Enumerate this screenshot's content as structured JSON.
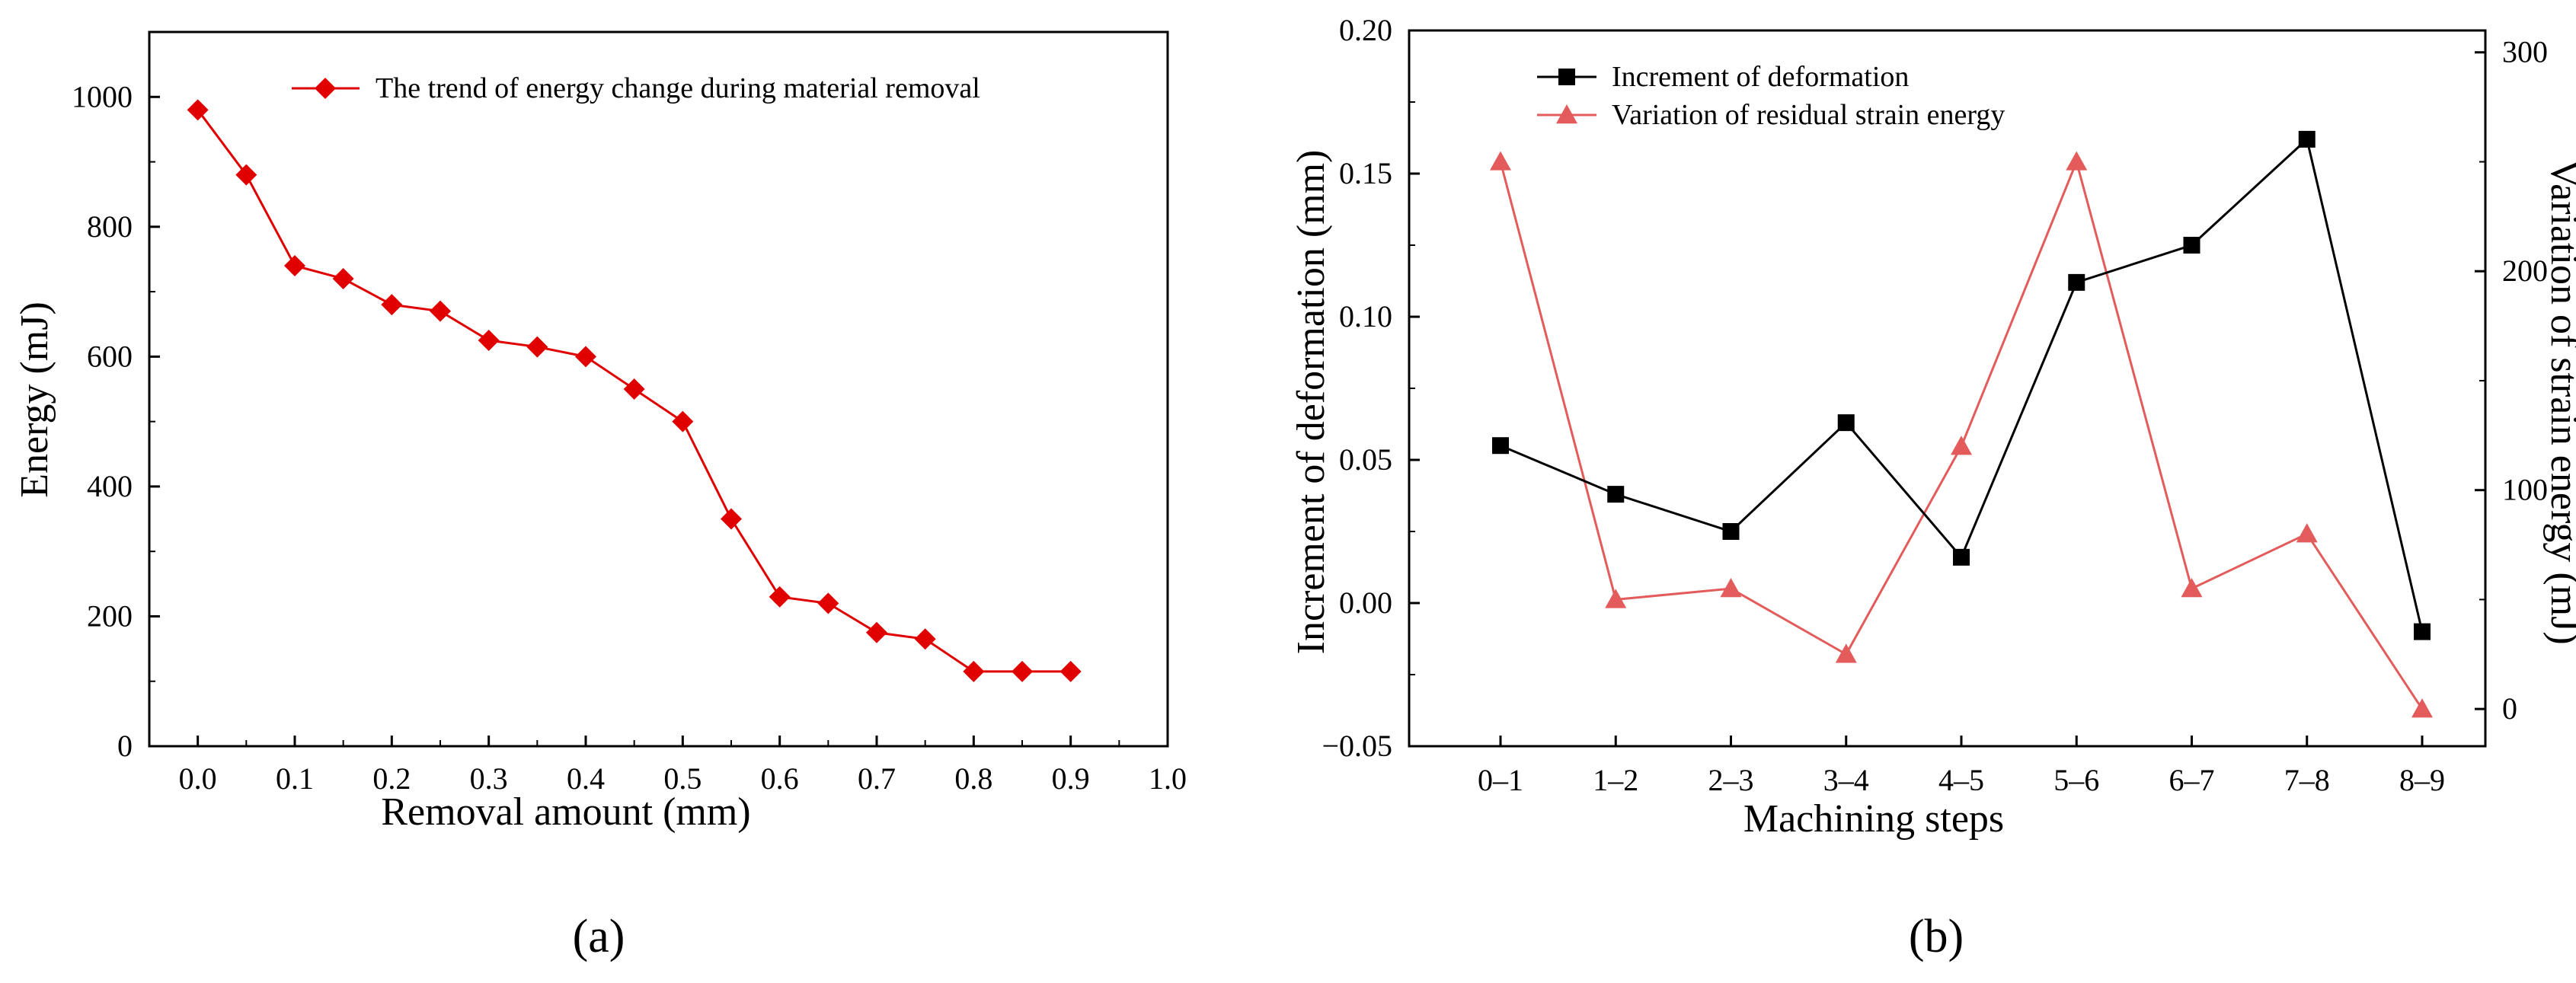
{
  "colors": {
    "red": "#e00000",
    "black": "#000000",
    "pink": "#e35b5b"
  },
  "panels": {
    "a": "(a)",
    "b": "(b)"
  },
  "chart_data": [
    {
      "type": "line",
      "panel": "a",
      "xlabel": "Removal amount (mm)",
      "ylabel": "Energy (mJ)",
      "xlim": [
        -0.05,
        1.0
      ],
      "ylim": [
        0,
        1100
      ],
      "xticks": [
        "0.0",
        "0.1",
        "0.2",
        "0.3",
        "0.4",
        "0.5",
        "0.6",
        "0.7",
        "0.8",
        "0.9",
        "1.0"
      ],
      "yticks": [
        "0",
        "200",
        "400",
        "600",
        "800",
        "1000"
      ],
      "legend_position": "top-right",
      "series": [
        {
          "name": "The trend of energy change during material removal",
          "color": "#e00000",
          "marker": "diamond",
          "x": [
            0.0,
            0.05,
            0.1,
            0.15,
            0.2,
            0.25,
            0.3,
            0.35,
            0.4,
            0.45,
            0.5,
            0.55,
            0.6,
            0.65,
            0.7,
            0.75,
            0.8,
            0.85,
            0.9
          ],
          "y": [
            980,
            880,
            740,
            720,
            680,
            670,
            625,
            615,
            600,
            550,
            500,
            350,
            230,
            220,
            175,
            165,
            115,
            115,
            115
          ]
        }
      ]
    },
    {
      "type": "line",
      "panel": "b",
      "xlabel": "Machining steps",
      "ylabel": "Increment of deformation (mm)",
      "y2label": "Variation of strain energy (mJ)",
      "categories": [
        "0–1",
        "1–2",
        "2–3",
        "3–4",
        "4–5",
        "5–6",
        "6–7",
        "7–8",
        "8–9"
      ],
      "ylim": [
        -0.05,
        0.2
      ],
      "y2lim": [
        -17,
        310
      ],
      "yticks": [
        "−0.05",
        "0.00",
        "0.05",
        "0.10",
        "0.15",
        "0.20"
      ],
      "y2ticks": [
        "0",
        "100",
        "200",
        "300"
      ],
      "legend_position": "top-left",
      "series": [
        {
          "name": "Increment of deformation",
          "color": "#000000",
          "marker": "square",
          "axis": "left",
          "values": [
            0.055,
            0.038,
            0.025,
            0.063,
            0.016,
            0.112,
            0.125,
            0.162,
            -0.01
          ]
        },
        {
          "name": "Variation of residual strain energy",
          "color": "#e35b5b",
          "marker": "triangle",
          "axis": "right",
          "values": [
            250,
            50,
            55,
            25,
            120,
            250,
            55,
            80,
            0
          ]
        }
      ]
    }
  ]
}
